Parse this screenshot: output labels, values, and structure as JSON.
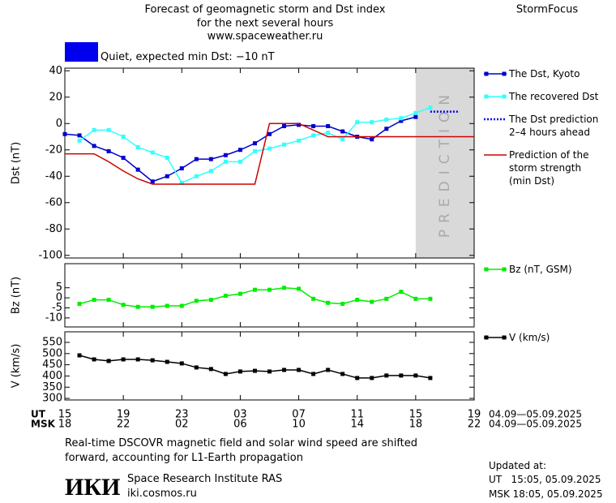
{
  "header": {
    "title": [
      "Forecast of geomagnetic storm and Dst index",
      "for the next several hours",
      "www.spaceweather.ru"
    ],
    "brand": "StormFocus"
  },
  "chart_data": [
    {
      "type": "line",
      "ylabel": "Dst (nT)",
      "xlim": [
        0,
        28
      ],
      "ylim": [
        -102,
        42
      ],
      "yticks": [
        -100,
        -80,
        -60,
        -40,
        -20,
        0,
        20,
        40
      ],
      "quiet_label": "Quiet, expected min Dst: −10 nT",
      "quiet_color": "#0000ee",
      "prediction_region": {
        "x": [
          24,
          28
        ],
        "label": "PREDICTION",
        "color": "#d9d9d9"
      },
      "series": [
        {
          "name": "The Dst, Kyoto",
          "color": "#0000cc",
          "marker": "square",
          "style": "solid",
          "x": [
            0,
            1,
            2,
            3,
            4,
            5,
            6,
            7,
            8,
            9,
            10,
            11,
            12,
            13,
            14,
            15,
            16,
            17,
            18,
            19,
            20,
            21,
            22,
            23,
            24
          ],
          "values": [
            -8,
            -9,
            -17,
            -21,
            -26,
            -35,
            -44,
            -40,
            -34,
            -27,
            -27,
            -24,
            -20,
            -15,
            -8,
            -2,
            -1,
            -2,
            -2,
            -6,
            -10,
            -12,
            -4,
            2,
            5
          ]
        },
        {
          "name": "The recovered Dst",
          "color": "#33ffff",
          "marker": "square",
          "style": "solid",
          "x": [
            1,
            2,
            3,
            4,
            5,
            6,
            7,
            8,
            9,
            10,
            11,
            12,
            13,
            14,
            15,
            16,
            17,
            18,
            19,
            20,
            21,
            22,
            23,
            24,
            25
          ],
          "values": [
            -13,
            -5,
            -5,
            -10,
            -18,
            -22,
            -26,
            -45,
            -40,
            -36,
            -29,
            -29,
            -21,
            -19,
            -16,
            -13,
            -9,
            -7,
            -12,
            1,
            1,
            3,
            4,
            8,
            12
          ]
        },
        {
          "name": "The Dst prediction\n2–4 hours ahead",
          "color": "#0000ee",
          "marker": "none",
          "style": "dotted",
          "x": [
            25,
            27
          ],
          "values": [
            9,
            9
          ]
        },
        {
          "name": "Prediction of the\nstorm strength\n(min Dst)",
          "color": "#cc0000",
          "marker": "none",
          "style": "solid",
          "x": [
            0,
            2,
            3,
            4,
            5,
            6,
            13,
            14,
            16,
            18,
            28
          ],
          "values": [
            -23,
            -23,
            -29,
            -36,
            -42,
            -46,
            -46,
            0,
            0,
            -10,
            -10
          ]
        }
      ]
    },
    {
      "type": "line",
      "ylabel": "Bz (nT)",
      "xlim": [
        0,
        28
      ],
      "ylim": [
        -14.5,
        17
      ],
      "yticks": [
        -10,
        -5,
        0,
        5
      ],
      "series": [
        {
          "name": "Bz (nT, GSM)",
          "color": "#00ee00",
          "marker": "square",
          "style": "solid",
          "x": [
            1,
            2,
            3,
            4,
            5,
            6,
            7,
            8,
            9,
            10,
            11,
            12,
            13,
            14,
            15,
            16,
            17,
            18,
            19,
            20,
            21,
            22,
            23,
            24,
            25
          ],
          "values": [
            -3,
            -1,
            -1,
            -3.5,
            -4.5,
            -4.5,
            -4,
            -4,
            -1.5,
            -1,
            1,
            2,
            4,
            4,
            5,
            4.5,
            -0.5,
            -2.5,
            -3,
            -1,
            -2,
            -0.5,
            3,
            -0.5,
            -0.5
          ]
        }
      ]
    },
    {
      "type": "line",
      "ylabel": "V (km/s)",
      "xlim": [
        0,
        28
      ],
      "ylim": [
        293,
        597
      ],
      "yticks": [
        300,
        350,
        400,
        450,
        500,
        550
      ],
      "xticks": [
        {
          "value": 0,
          "label": "15"
        },
        {
          "value": 4,
          "label": "19"
        },
        {
          "value": 8,
          "label": "23"
        },
        {
          "value": 12,
          "label": "03"
        },
        {
          "value": 16,
          "label": "07"
        },
        {
          "value": 20,
          "label": "11"
        },
        {
          "value": 24,
          "label": "15"
        },
        {
          "value": 28,
          "label": "19"
        }
      ],
      "xticks_msk": [
        {
          "value": 0,
          "label": "18"
        },
        {
          "value": 4,
          "label": "22"
        },
        {
          "value": 8,
          "label": "02"
        },
        {
          "value": 12,
          "label": "06"
        },
        {
          "value": 16,
          "label": "10"
        },
        {
          "value": 20,
          "label": "14"
        },
        {
          "value": 24,
          "label": "18"
        },
        {
          "value": 28,
          "label": "22"
        }
      ],
      "xlabel_ut": "UT",
      "xlabel_msk": "MSK",
      "date_range_ut": "04.09—05.09.2025",
      "date_range_msk": "04.09—05.09.2025",
      "series": [
        {
          "name": "V (km/s)",
          "color": "#000000",
          "marker": "square",
          "style": "solid",
          "x": [
            1,
            2,
            3,
            4,
            5,
            6,
            7,
            8,
            9,
            10,
            11,
            12,
            13,
            14,
            15,
            16,
            17,
            18,
            19,
            20,
            21,
            22,
            23,
            24,
            25
          ],
          "values": [
            492,
            474,
            467,
            474,
            474,
            470,
            463,
            456,
            438,
            431,
            409,
            420,
            423,
            420,
            427,
            427,
            409,
            427,
            409,
            391,
            391,
            402,
            402,
            402,
            391
          ]
        }
      ]
    }
  ],
  "footer": {
    "note": [
      "Real-time DSCOVR magnetic field and solar wind speed are shifted",
      "forward, accounting for L1-Earth propagation"
    ],
    "logo": "ИКИ",
    "institute": "Space Research Institute RAS",
    "site": "iki.cosmos.ru",
    "updated": "Updated at:",
    "updated_ut": "UT   15:05, 05.09.2025",
    "updated_msk": "MSK 18:05, 05.09.2025"
  }
}
